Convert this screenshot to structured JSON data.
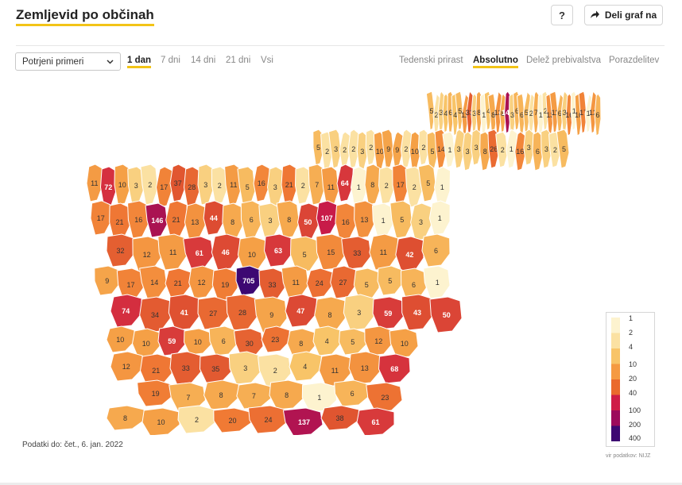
{
  "header": {
    "title": "Zemljevid po občinah",
    "help_label": "?",
    "share_label": "Deli graf na",
    "share_icon": "share-arrow-icon"
  },
  "controls": {
    "select_value": "Potrjeni primeri",
    "time_tabs": [
      "1 dan",
      "7 dni",
      "14 dni",
      "21 dni",
      "Vsi"
    ],
    "active_time_tab": "1 dan",
    "mode_tabs": [
      "Tedenski prirast",
      "Absolutno",
      "Delež prebivalstva",
      "Porazdelitev"
    ],
    "active_mode_tab": "Absolutno"
  },
  "footer": {
    "data_date": "Podatki do: čet., 6. jan. 2022",
    "source": "vir podatkov: NIJZ"
  },
  "legend": {
    "ticks": [
      "1",
      "2",
      "4",
      "10",
      "20",
      "40",
      "100",
      "200",
      "400"
    ],
    "colors": [
      "#fdf3cf",
      "#fbe1a2",
      "#f8c468",
      "#f59a42",
      "#ea6a2d",
      "#cf1d47",
      "#9c0a5c",
      "#3d0872"
    ]
  },
  "map": {
    "colors": {
      "border": "#ffffff",
      "no_data": "#ffffff"
    },
    "municipality_values": [
      5,
      2,
      3,
      4,
      6,
      4,
      5,
      11,
      33,
      3,
      8,
      1,
      4,
      8,
      13,
      8,
      147,
      3,
      6,
      6,
      5,
      2,
      7,
      1,
      2,
      13,
      11,
      6,
      3,
      16,
      1,
      10,
      17,
      1,
      12,
      6,
      5,
      2,
      3,
      2,
      2,
      3,
      2,
      10,
      9,
      9,
      2,
      10,
      2,
      5,
      14,
      1,
      3,
      3,
      3,
      8,
      26,
      2,
      1,
      16,
      3,
      6,
      3,
      2,
      5,
      11,
      72,
      10,
      3,
      2,
      17,
      37,
      28,
      3,
      2,
      11,
      5,
      16,
      3,
      21,
      2,
      7,
      11,
      64,
      1,
      8,
      2,
      17,
      2,
      5,
      1,
      17,
      21,
      16,
      146,
      21,
      13,
      44,
      8,
      6,
      3,
      8,
      50,
      107,
      16,
      13,
      1,
      5,
      3,
      1,
      32,
      12,
      11,
      61,
      46,
      10,
      63,
      5,
      15,
      33,
      11,
      42,
      6,
      9,
      17,
      14,
      21,
      12,
      19,
      705,
      33,
      11,
      24,
      27,
      5,
      5,
      6,
      1,
      74,
      34,
      41,
      27,
      28,
      9,
      47,
      8,
      3,
      59,
      43,
      50,
      10,
      10,
      59,
      10,
      6,
      30,
      23,
      8,
      4,
      5,
      12,
      10,
      12,
      21,
      33,
      35,
      3,
      2,
      4,
      11,
      13,
      68,
      19,
      7,
      8,
      7,
      8,
      1,
      6,
      23,
      8,
      10,
      2,
      20,
      24,
      137,
      38,
      61
    ]
  }
}
